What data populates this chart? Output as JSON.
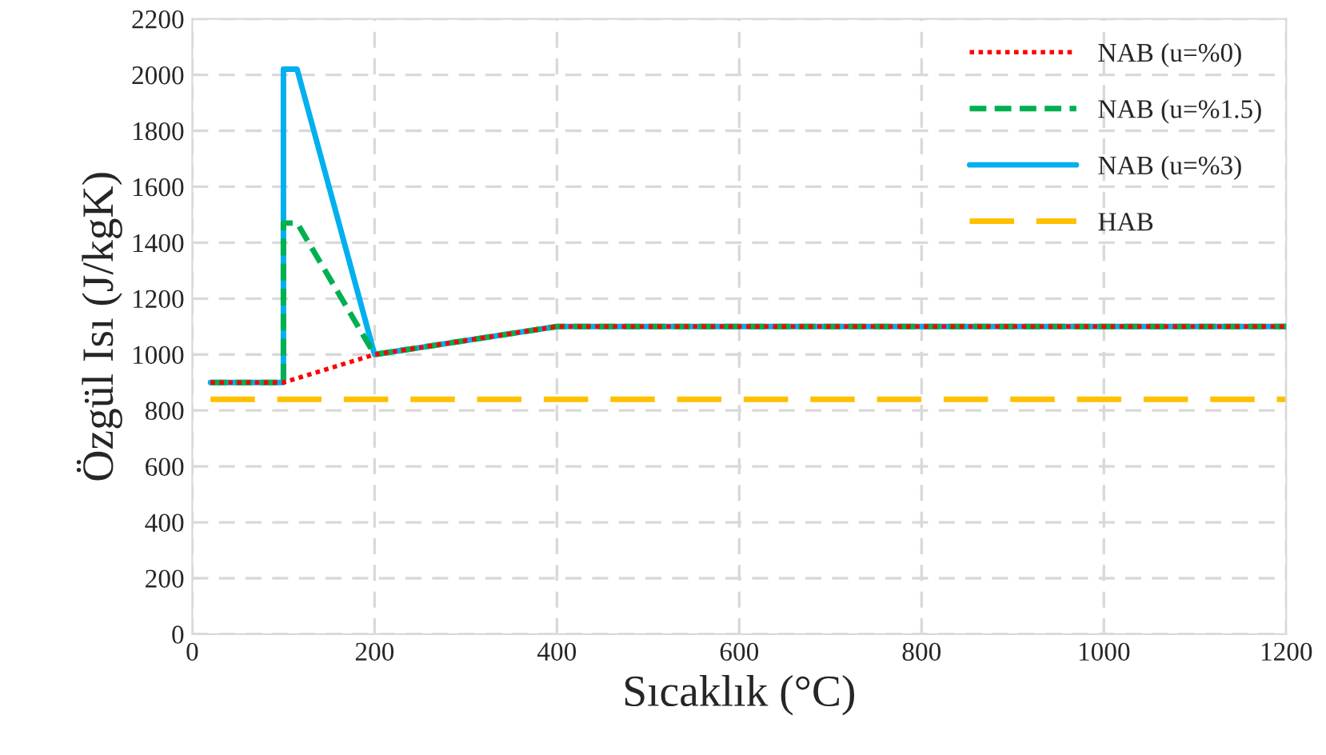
{
  "chart_data": {
    "type": "line",
    "xlabel": "Sıcaklık (°C)",
    "ylabel": "Özgül Isı (J/kgK)",
    "xlim": [
      0,
      1200
    ],
    "xticks": [
      0,
      200,
      400,
      600,
      800,
      1000,
      1200
    ],
    "ylim": [
      0,
      2200
    ],
    "yticks": [
      0,
      200,
      400,
      600,
      800,
      1000,
      1200,
      1400,
      1600,
      1800,
      2000,
      2200
    ],
    "grid": true,
    "legend": "top right",
    "series": [
      {
        "name": "NAB (u=%0)",
        "color": "#ff0000",
        "line_style": "dotted",
        "x": [
          20,
          100,
          200,
          400,
          1200
        ],
        "values": [
          900,
          900,
          1000,
          1100,
          1100
        ]
      },
      {
        "name": "NAB (u=%1.5)",
        "color": "#00b050",
        "line_style": "dashed",
        "x": [
          20,
          100,
          100,
          115,
          200,
          400,
          1200
        ],
        "values": [
          900,
          900,
          1470,
          1470,
          1000,
          1100,
          1100
        ]
      },
      {
        "name": "NAB (u=%3)",
        "color": "#00b0f0",
        "line_style": "solid",
        "x": [
          20,
          100,
          100,
          115,
          200,
          400,
          1200
        ],
        "values": [
          900,
          900,
          2020,
          2020,
          1000,
          1100,
          1100
        ]
      },
      {
        "name": "HAB",
        "color": "#ffc000",
        "line_style": "longdash",
        "x": [
          20,
          1200
        ],
        "values": [
          840,
          840
        ]
      }
    ]
  }
}
